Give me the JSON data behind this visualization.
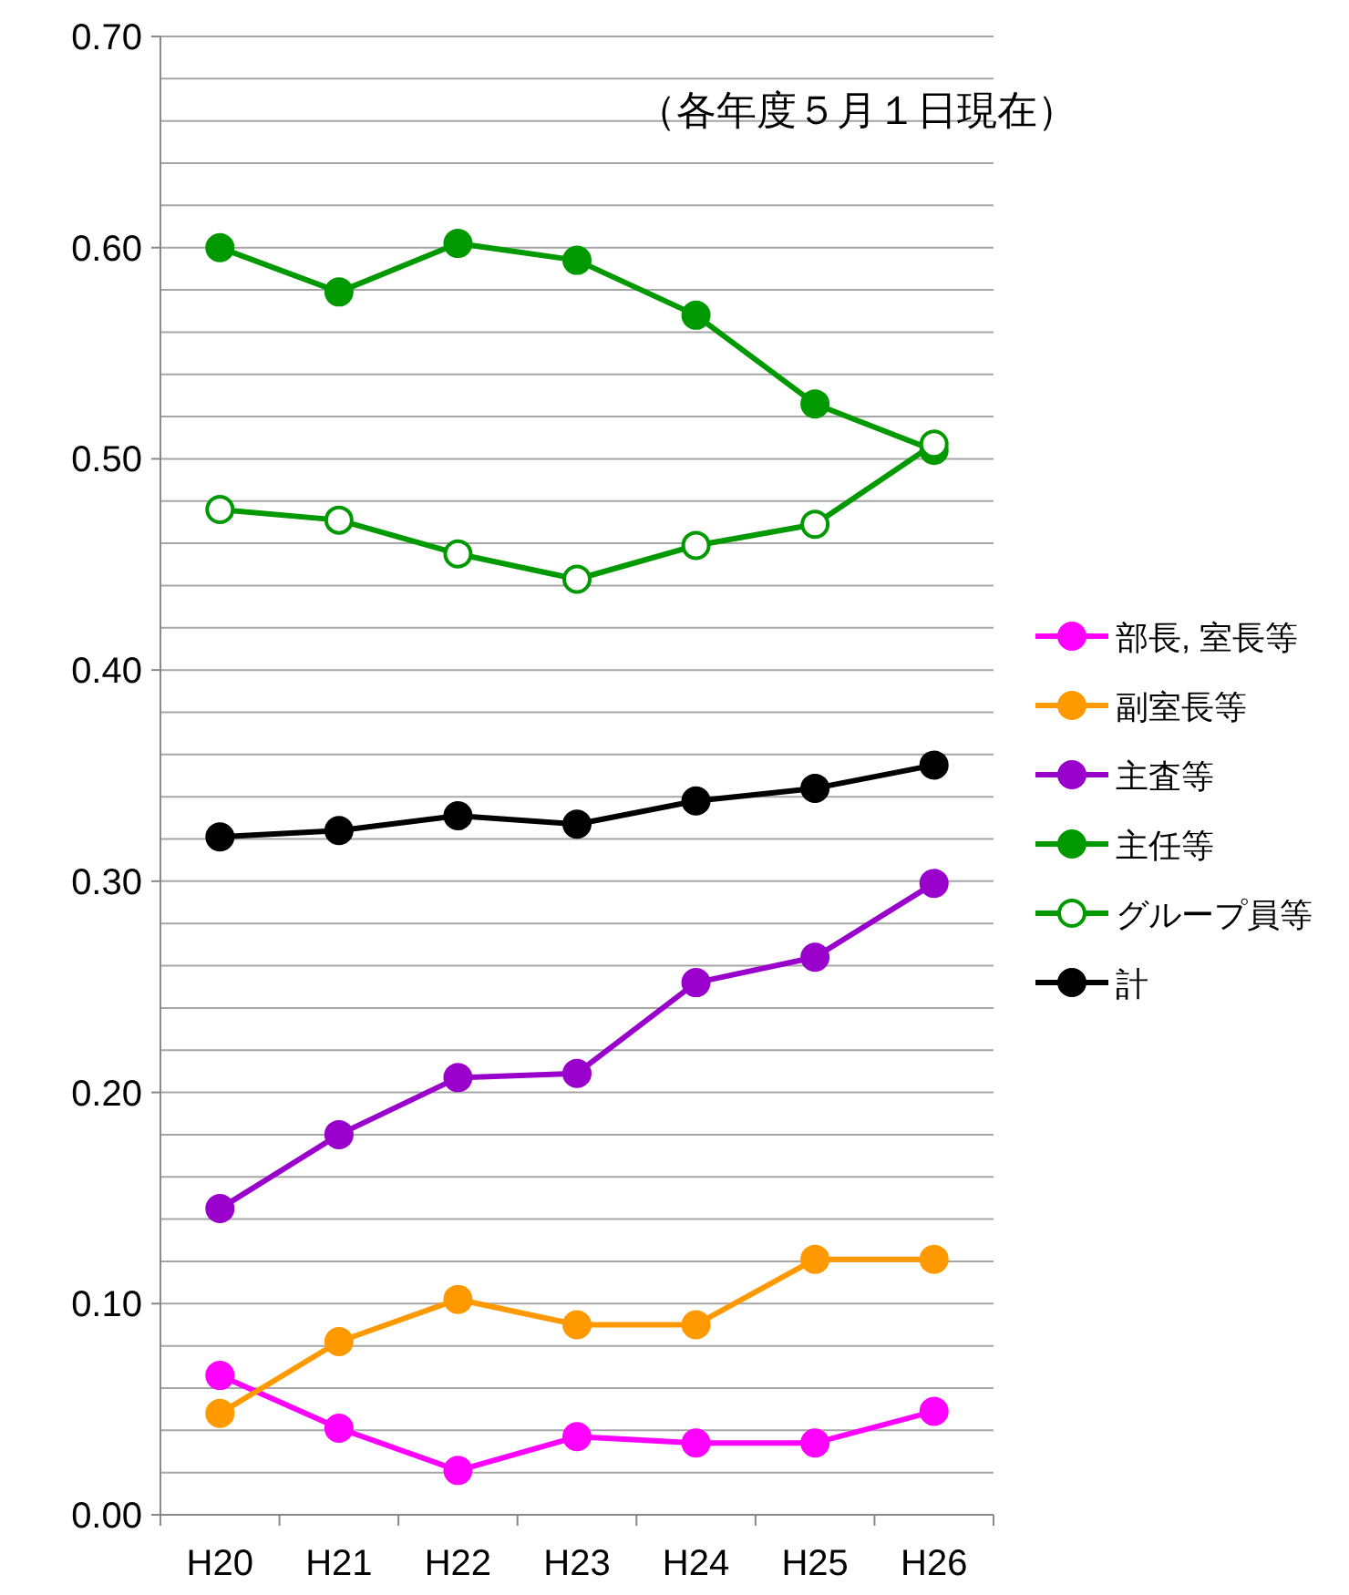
{
  "chart_data": {
    "type": "line",
    "categories": [
      "H20",
      "H21",
      "H22",
      "H23",
      "H24",
      "H25",
      "H26"
    ],
    "series": [
      {
        "name": "部長, 室長等",
        "color": "#ff00ff",
        "values": [
          0.066,
          0.041,
          0.021,
          0.037,
          0.034,
          0.034,
          0.049
        ]
      },
      {
        "name": "副室長等",
        "color": "#ff9900",
        "values": [
          0.048,
          0.082,
          0.102,
          0.09,
          0.09,
          0.121,
          0.121
        ]
      },
      {
        "name": "主査等",
        "color": "#9900cc",
        "values": [
          0.145,
          0.18,
          0.207,
          0.209,
          0.252,
          0.264,
          0.299
        ]
      },
      {
        "name": "主任等",
        "color": "#009900",
        "values": [
          0.6,
          0.579,
          0.602,
          0.594,
          0.568,
          0.526,
          0.504
        ]
      },
      {
        "name": "グループ員等",
        "color": "#009900",
        "values": [
          0.476,
          0.471,
          0.455,
          0.443,
          0.459,
          0.469,
          0.507
        ]
      },
      {
        "name": "計",
        "color": "#000000",
        "values": [
          0.321,
          0.324,
          0.331,
          0.327,
          0.338,
          0.344,
          0.355
        ]
      }
    ],
    "ylim": [
      0,
      0.7
    ],
    "yticks": [
      {
        "value": 0,
        "label": "0.00"
      },
      {
        "value": 0.02,
        "label": null
      },
      {
        "value": 0.04,
        "label": null
      },
      {
        "value": 0.06,
        "label": null
      },
      {
        "value": 0.08,
        "label": null
      },
      {
        "value": 0.1,
        "label": "0.10"
      },
      {
        "value": 0.12,
        "label": null
      },
      {
        "value": 0.14,
        "label": null
      },
      {
        "value": 0.16,
        "label": null
      },
      {
        "value": 0.18,
        "label": null
      },
      {
        "value": 0.2,
        "label": "0.20"
      },
      {
        "value": 0.22,
        "label": null
      },
      {
        "value": 0.24,
        "label": null
      },
      {
        "value": 0.26,
        "label": null
      },
      {
        "value": 0.28,
        "label": null
      },
      {
        "value": 0.3,
        "label": "0.30"
      },
      {
        "value": 0.32,
        "label": null
      },
      {
        "value": 0.34,
        "label": null
      },
      {
        "value": 0.36,
        "label": null
      },
      {
        "value": 0.38,
        "label": null
      },
      {
        "value": 0.4,
        "label": "0.40"
      },
      {
        "value": 0.42,
        "label": null
      },
      {
        "value": 0.44,
        "label": null
      },
      {
        "value": 0.46,
        "label": null
      },
      {
        "value": 0.48,
        "label": null
      },
      {
        "value": 0.5,
        "label": "0.50"
      },
      {
        "value": 0.52,
        "label": null
      },
      {
        "value": 0.54,
        "label": null
      },
      {
        "value": 0.56,
        "label": null
      },
      {
        "value": 0.58,
        "label": null
      },
      {
        "value": 0.6,
        "label": "0.60"
      },
      {
        "value": 0.62,
        "label": null
      },
      {
        "value": 0.64,
        "label": null
      },
      {
        "value": 0.66,
        "label": null
      },
      {
        "value": 0.68,
        "label": null
      },
      {
        "value": 0.7,
        "label": "0.70"
      }
    ],
    "grid": "y",
    "marker": "circle",
    "line_style": "solid",
    "legend": "right",
    "annotations": [
      "（各年度５月１日現在）"
    ]
  }
}
